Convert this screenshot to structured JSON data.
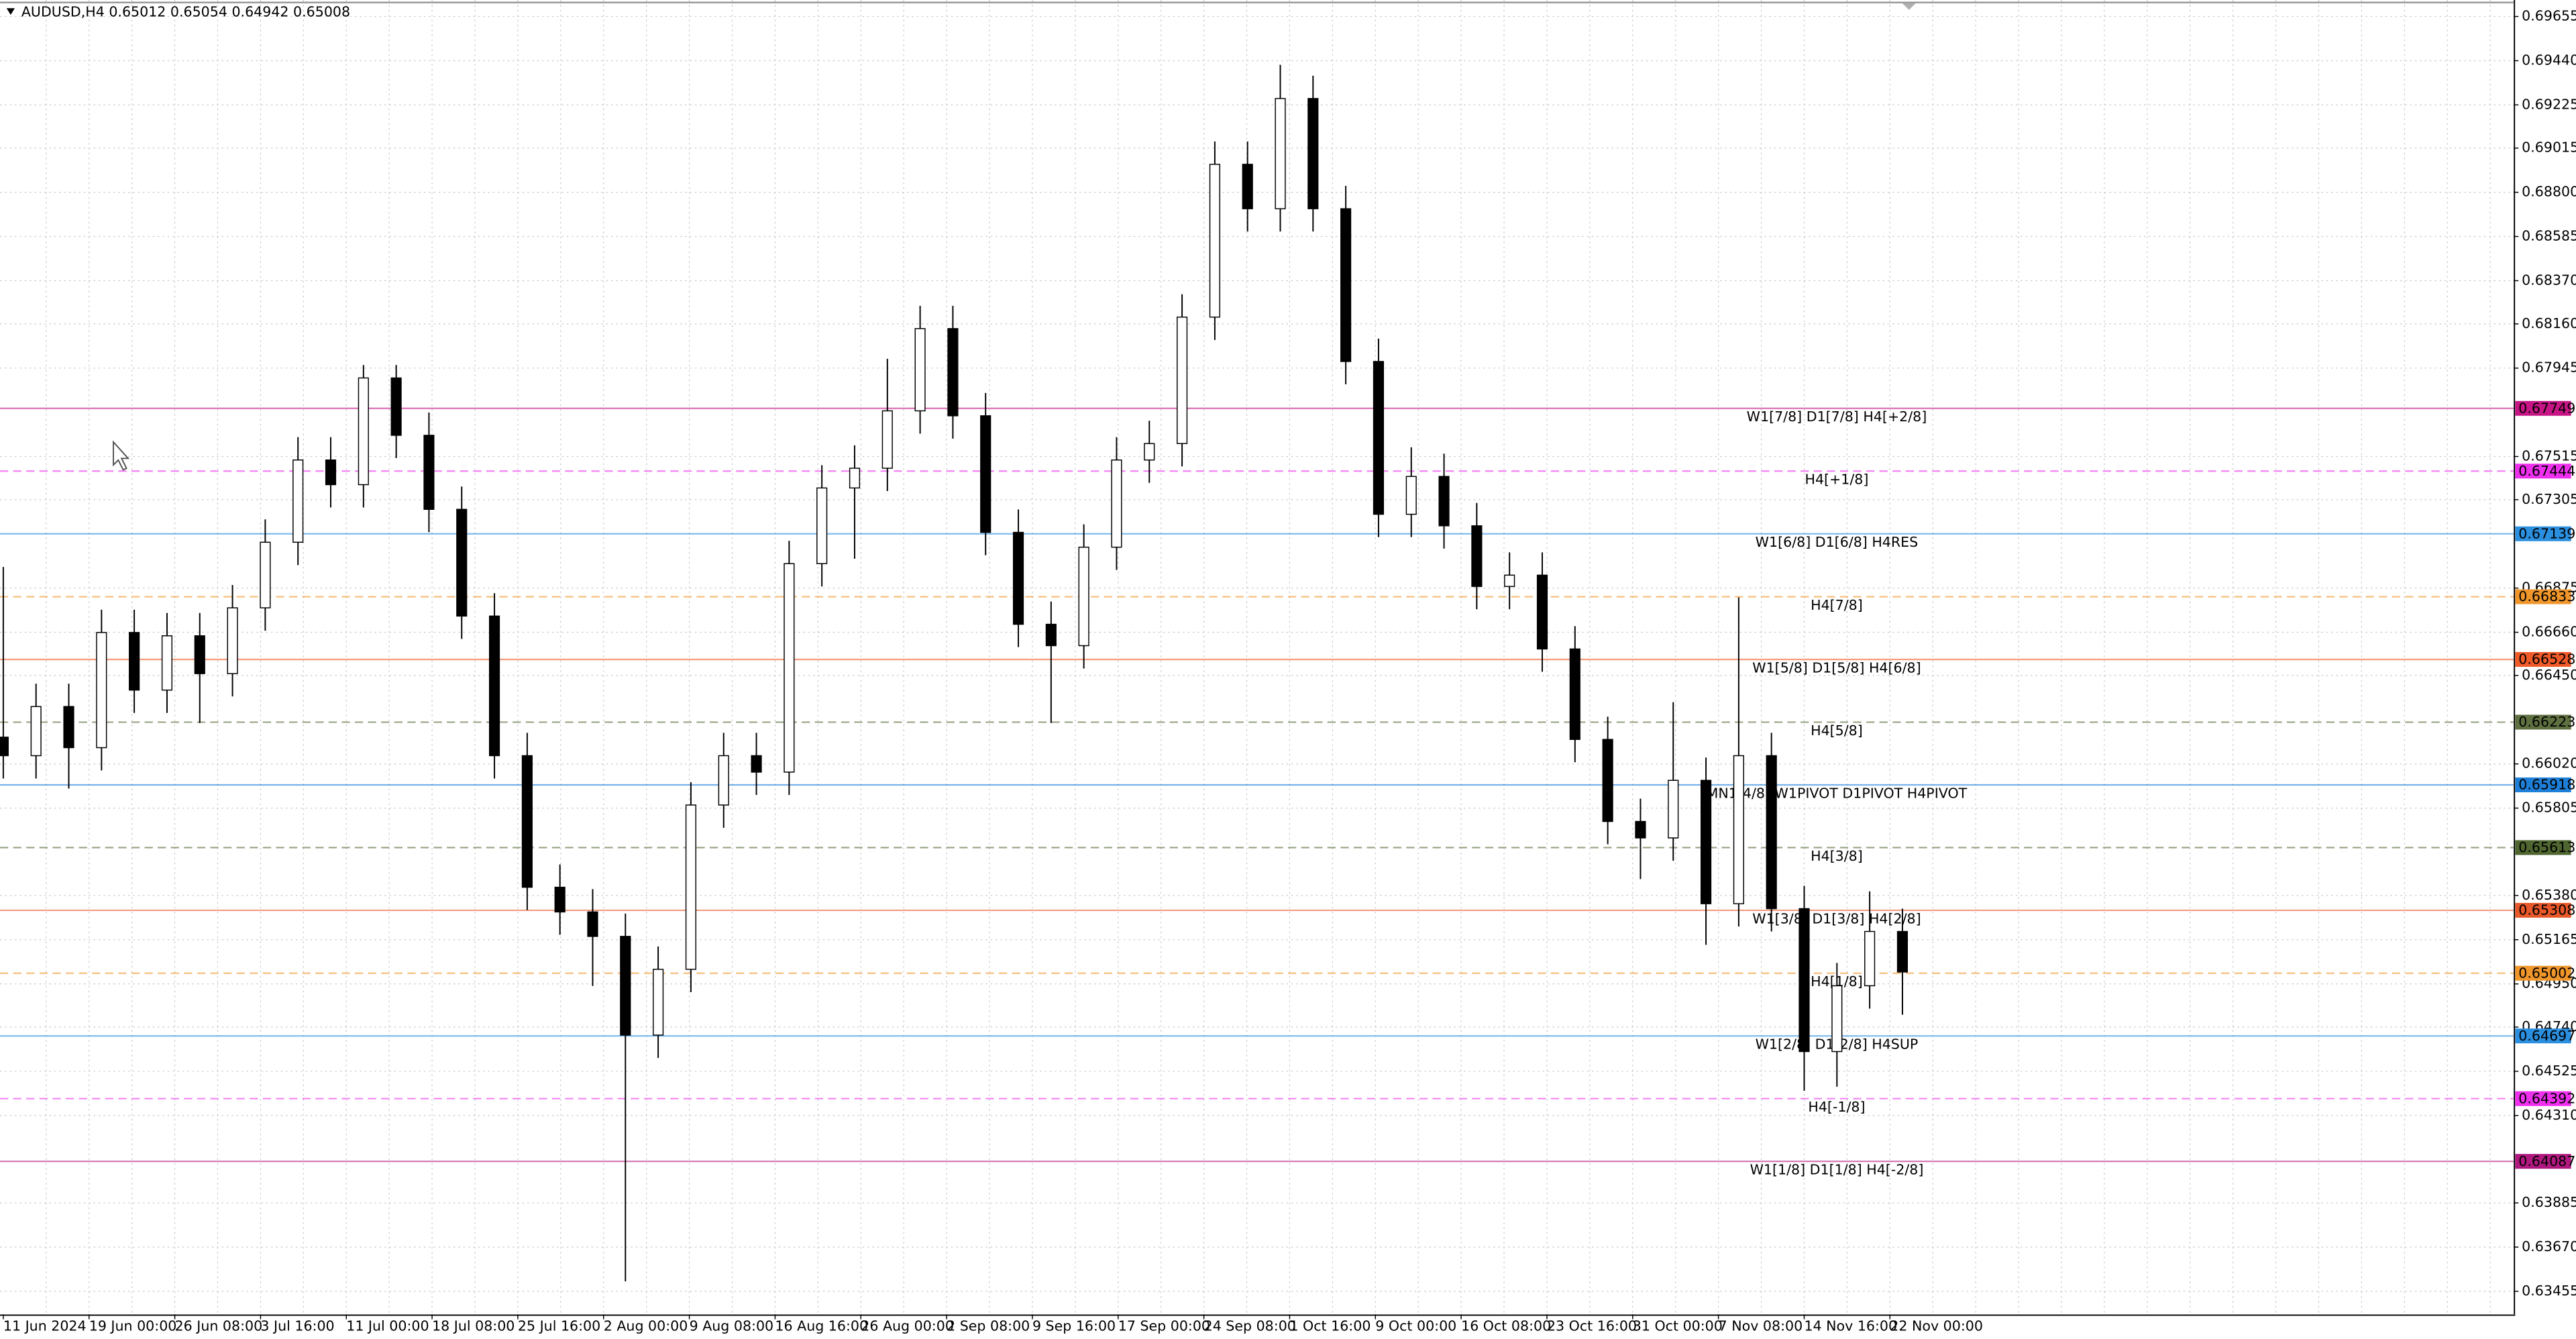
{
  "chart_data": {
    "type": "candlestick",
    "title": "AUDUSD,H4  0.65012 0.65054 0.64942 0.65008",
    "ylim": [
      0.63343,
      0.69735
    ],
    "yticks": [
      {
        "value": 0.69655,
        "label": "0.69655"
      },
      {
        "value": 0.6944,
        "label": "0.69440"
      },
      {
        "value": 0.69225,
        "label": "0.69225"
      },
      {
        "value": 0.69015,
        "label": "0.69015"
      },
      {
        "value": 0.688,
        "label": "0.68800"
      },
      {
        "value": 0.68585,
        "label": "0.68585"
      },
      {
        "value": 0.6837,
        "label": "0.68370"
      },
      {
        "value": 0.6816,
        "label": "0.68160"
      },
      {
        "value": 0.67945,
        "label": "0.67945"
      },
      {
        "value": 0.67515,
        "label": "0.67515"
      },
      {
        "value": 0.67305,
        "label": "0.67305"
      },
      {
        "value": 0.66875,
        "label": "0.66875"
      },
      {
        "value": 0.6666,
        "label": "0.66660"
      },
      {
        "value": 0.6645,
        "label": "0.66450"
      },
      {
        "value": 0.6602,
        "label": "0.66020"
      },
      {
        "value": 0.65805,
        "label": "0.65805"
      },
      {
        "value": 0.6538,
        "label": "0.65380"
      },
      {
        "value": 0.65165,
        "label": "0.65165"
      },
      {
        "value": 0.6495,
        "label": "0.64950"
      },
      {
        "value": 0.6474,
        "label": "0.64740"
      },
      {
        "value": 0.64525,
        "label": "0.64525"
      },
      {
        "value": 0.6431,
        "label": "0.64310"
      },
      {
        "value": 0.63885,
        "label": "0.63885"
      },
      {
        "value": 0.6367,
        "label": "0.63670"
      },
      {
        "value": 0.63455,
        "label": "0.63455"
      }
    ],
    "x_labels": [
      "11 Jun 2024",
      "19 Jun 00:00",
      "26 Jun 08:00",
      "3 Jul 16:00",
      "11 Jul 00:00",
      "18 Jul 08:00",
      "25 Jul 16:00",
      "2 Aug 00:00",
      "9 Aug 08:00",
      "16 Aug 16:00",
      "26 Aug 00:00",
      "2 Sep 08:00",
      "9 Sep 16:00",
      "17 Sep 00:00",
      "24 Sep 08:00",
      "1 Oct 16:00",
      "9 Oct 00:00",
      "16 Oct 08:00",
      "23 Oct 16:00",
      "31 Oct 00:00",
      "7 Nov 08:00",
      "14 Nov 16:00",
      "22 Nov 00:00"
    ],
    "grid": true,
    "bull_color": "#ffffff",
    "bear_color": "#000000",
    "candles": [
      {
        "o": 0.6615,
        "h": 0.66978,
        "l": 0.65949,
        "c": 0.6606
      },
      {
        "o": 0.6606,
        "h": 0.6641,
        "l": 0.65949,
        "c": 0.66299
      },
      {
        "o": 0.66299,
        "h": 0.6641,
        "l": 0.659,
        "c": 0.66099
      },
      {
        "o": 0.66099,
        "h": 0.6677,
        "l": 0.65988,
        "c": 0.66659
      },
      {
        "o": 0.66659,
        "h": 0.6677,
        "l": 0.66268,
        "c": 0.66379
      },
      {
        "o": 0.66379,
        "h": 0.66754,
        "l": 0.66268,
        "c": 0.66643
      },
      {
        "o": 0.66643,
        "h": 0.66754,
        "l": 0.66219,
        "c": 0.66459
      },
      {
        "o": 0.66459,
        "h": 0.6689,
        "l": 0.66348,
        "c": 0.66779
      },
      {
        "o": 0.66779,
        "h": 0.67209,
        "l": 0.66668,
        "c": 0.67098
      },
      {
        "o": 0.67098,
        "h": 0.67609,
        "l": 0.66987,
        "c": 0.67498
      },
      {
        "o": 0.67498,
        "h": 0.67609,
        "l": 0.67267,
        "c": 0.67378
      },
      {
        "o": 0.67378,
        "h": 0.6796,
        "l": 0.67267,
        "c": 0.67897
      },
      {
        "o": 0.67897,
        "h": 0.6796,
        "l": 0.67507,
        "c": 0.67618
      },
      {
        "o": 0.67618,
        "h": 0.67729,
        "l": 0.67147,
        "c": 0.67258
      },
      {
        "o": 0.67258,
        "h": 0.67369,
        "l": 0.66628,
        "c": 0.66739
      },
      {
        "o": 0.66739,
        "h": 0.6685,
        "l": 0.65949,
        "c": 0.6606
      },
      {
        "o": 0.6606,
        "h": 0.66171,
        "l": 0.65309,
        "c": 0.6542
      },
      {
        "o": 0.6542,
        "h": 0.65531,
        "l": 0.65189,
        "c": 0.653
      },
      {
        "o": 0.653,
        "h": 0.65411,
        "l": 0.6494,
        "c": 0.65181
      },
      {
        "o": 0.65181,
        "h": 0.65292,
        "l": 0.63503,
        "c": 0.64701
      },
      {
        "o": 0.64701,
        "h": 0.65132,
        "l": 0.6459,
        "c": 0.65021
      },
      {
        "o": 0.65021,
        "h": 0.65931,
        "l": 0.6491,
        "c": 0.6582
      },
      {
        "o": 0.6582,
        "h": 0.66171,
        "l": 0.65709,
        "c": 0.6606
      },
      {
        "o": 0.6606,
        "h": 0.66171,
        "l": 0.65869,
        "c": 0.6598
      },
      {
        "o": 0.6598,
        "h": 0.67105,
        "l": 0.65869,
        "c": 0.66994
      },
      {
        "o": 0.66994,
        "h": 0.67473,
        "l": 0.66883,
        "c": 0.67362
      },
      {
        "o": 0.67362,
        "h": 0.67569,
        "l": 0.67018,
        "c": 0.67458
      },
      {
        "o": 0.67458,
        "h": 0.6799,
        "l": 0.67347,
        "c": 0.67737
      },
      {
        "o": 0.67737,
        "h": 0.68248,
        "l": 0.67626,
        "c": 0.68137
      },
      {
        "o": 0.68137,
        "h": 0.68248,
        "l": 0.67602,
        "c": 0.67713
      },
      {
        "o": 0.67713,
        "h": 0.67824,
        "l": 0.67035,
        "c": 0.67146
      },
      {
        "o": 0.67146,
        "h": 0.67257,
        "l": 0.66588,
        "c": 0.66699
      },
      {
        "o": 0.66699,
        "h": 0.6681,
        "l": 0.66219,
        "c": 0.66595
      },
      {
        "o": 0.66595,
        "h": 0.67185,
        "l": 0.66484,
        "c": 0.67074
      },
      {
        "o": 0.67074,
        "h": 0.67609,
        "l": 0.66963,
        "c": 0.67498
      },
      {
        "o": 0.67498,
        "h": 0.67689,
        "l": 0.67387,
        "c": 0.67578
      },
      {
        "o": 0.67578,
        "h": 0.68304,
        "l": 0.67467,
        "c": 0.68193
      },
      {
        "o": 0.68193,
        "h": 0.69047,
        "l": 0.68082,
        "c": 0.68936
      },
      {
        "o": 0.68936,
        "h": 0.69047,
        "l": 0.68609,
        "c": 0.6872
      },
      {
        "o": 0.6872,
        "h": 0.6942,
        "l": 0.68609,
        "c": 0.69256
      },
      {
        "o": 0.69256,
        "h": 0.69367,
        "l": 0.68609,
        "c": 0.6872
      },
      {
        "o": 0.6872,
        "h": 0.68831,
        "l": 0.67866,
        "c": 0.67977
      },
      {
        "o": 0.67977,
        "h": 0.68088,
        "l": 0.67123,
        "c": 0.67234
      },
      {
        "o": 0.67234,
        "h": 0.6756,
        "l": 0.67123,
        "c": 0.67418
      },
      {
        "o": 0.67418,
        "h": 0.67529,
        "l": 0.67067,
        "c": 0.67178
      },
      {
        "o": 0.67178,
        "h": 0.67289,
        "l": 0.66772,
        "c": 0.66883
      },
      {
        "o": 0.66883,
        "h": 0.67049,
        "l": 0.66772,
        "c": 0.66938
      },
      {
        "o": 0.66938,
        "h": 0.67049,
        "l": 0.66468,
        "c": 0.66579
      },
      {
        "o": 0.66579,
        "h": 0.6669,
        "l": 0.66028,
        "c": 0.66139
      },
      {
        "o": 0.66139,
        "h": 0.6625,
        "l": 0.65629,
        "c": 0.6574
      },
      {
        "o": 0.6574,
        "h": 0.65851,
        "l": 0.6546,
        "c": 0.6566
      },
      {
        "o": 0.6566,
        "h": 0.6632,
        "l": 0.65549,
        "c": 0.6594
      },
      {
        "o": 0.6594,
        "h": 0.66051,
        "l": 0.6514,
        "c": 0.6534
      },
      {
        "o": 0.6534,
        "h": 0.6683,
        "l": 0.65229,
        "c": 0.6606
      },
      {
        "o": 0.6606,
        "h": 0.66171,
        "l": 0.65205,
        "c": 0.65316
      },
      {
        "o": 0.65316,
        "h": 0.65427,
        "l": 0.6443,
        "c": 0.64621
      },
      {
        "o": 0.64621,
        "h": 0.65052,
        "l": 0.6445,
        "c": 0.64941
      },
      {
        "o": 0.64941,
        "h": 0.654,
        "l": 0.6483,
        "c": 0.65205
      },
      {
        "o": 0.65205,
        "h": 0.65316,
        "l": 0.648,
        "c": 0.65008
      }
    ],
    "levels": [
      {
        "price": 0.67749,
        "label": "W1[7/8] D1[7/8] H4[+2/8]",
        "color": "#c71585",
        "dashed": false
      },
      {
        "price": 0.67444,
        "label": "H4[+1/8]",
        "color": "#ee30ee",
        "dashed": true
      },
      {
        "price": 0.67139,
        "label": "W1[6/8] D1[6/8] H4RES",
        "color": "#2b8fe0",
        "dashed": false
      },
      {
        "price": 0.66833,
        "label": "H4[7/8]",
        "color": "#f0962a",
        "dashed": true
      },
      {
        "price": 0.66528,
        "label": "W1[5/8] D1[5/8] H4[6/8]",
        "color": "#f05a28",
        "dashed": false
      },
      {
        "price": 0.66223,
        "label": "H4[5/8]",
        "color": "#5f7040",
        "dashed": true
      },
      {
        "price": 0.65918,
        "label": "MN1[4/8] W1PIVOT D1PIVOT H4PIVOT",
        "color": "#1e7fd8",
        "dashed": false
      },
      {
        "price": 0.65613,
        "label": "H4[3/8]",
        "color": "#4f6630",
        "dashed": true
      },
      {
        "price": 0.65308,
        "label": "W1[3/8] D1[3/8] H4[2/8]",
        "color": "#e8582a",
        "dashed": false
      },
      {
        "price": 0.65002,
        "label": "H4[1/8]",
        "color": "#f0962a",
        "dashed": true
      },
      {
        "price": 0.64697,
        "label": "W1[2/8] D1[2/8] H4SUP",
        "color": "#2b8fe0",
        "dashed": false
      },
      {
        "price": 0.64392,
        "label": "H4[-1/8]",
        "color": "#ee30ee",
        "dashed": true
      },
      {
        "price": 0.64087,
        "label": "W1[1/8] D1[1/8] H4[-2/8]",
        "color": "#b01880",
        "dashed": false
      }
    ]
  }
}
